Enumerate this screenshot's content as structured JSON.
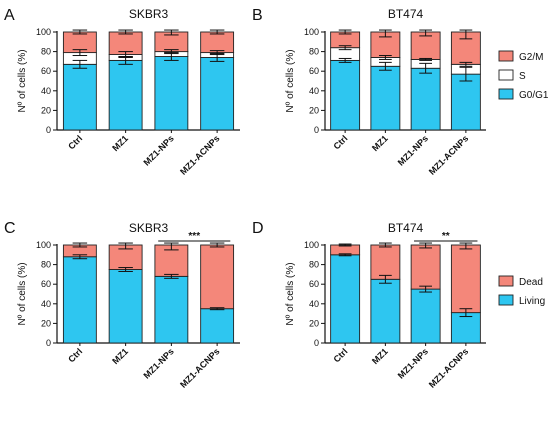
{
  "colors": {
    "g2m": "#F4877A",
    "s": "#FFFFFF",
    "g0g1": "#2EC6F0",
    "dead": "#F4877A",
    "living": "#2EC6F0",
    "living_edge": "#8ED08A"
  },
  "legends": {
    "top": [
      "G2/M",
      "S",
      "G0/G1"
    ],
    "bottom": [
      "Dead",
      "Living"
    ]
  },
  "chart_data": [
    {
      "panel": "A",
      "type": "bar",
      "stacked": true,
      "title": "SKBR3",
      "ylabel": "Nº of cells (%)",
      "ylim": [
        0,
        100
      ],
      "yticks": [
        0,
        20,
        40,
        60,
        80,
        100
      ],
      "categories": [
        "Ctrl",
        "MZ1",
        "MZ1-NPs",
        "MZ1-ACNPs"
      ],
      "series": [
        {
          "name": "G0/G1",
          "values": [
            67,
            71,
            75,
            74
          ],
          "errors": [
            4,
            4,
            4,
            4
          ]
        },
        {
          "name": "S",
          "values": [
            12,
            6,
            5,
            5
          ],
          "errors": [
            3,
            3,
            2,
            2
          ]
        },
        {
          "name": "G2/M",
          "values": [
            21,
            23,
            20,
            21
          ],
          "errors": [
            2,
            2,
            3,
            2
          ]
        }
      ]
    },
    {
      "panel": "B",
      "type": "bar",
      "stacked": true,
      "title": "BT474",
      "ylabel": "Nº of cells (%)",
      "ylim": [
        0,
        100
      ],
      "yticks": [
        0,
        20,
        40,
        60,
        80,
        100
      ],
      "categories": [
        "Ctrl",
        "MZ1",
        "MZ1-NPs",
        "MZ1-ACNPs"
      ],
      "series": [
        {
          "name": "G0/G1",
          "values": [
            71,
            65,
            63,
            57
          ],
          "errors": [
            2,
            4,
            5,
            7
          ]
        },
        {
          "name": "S",
          "values": [
            13,
            9,
            9,
            10
          ],
          "errors": [
            2,
            2,
            1,
            2
          ]
        },
        {
          "name": "G2/M",
          "values": [
            16,
            26,
            28,
            33
          ],
          "errors": [
            2,
            5,
            4,
            7
          ]
        }
      ]
    },
    {
      "panel": "C",
      "type": "bar",
      "stacked": true,
      "title": "SKBR3",
      "ylabel": "Nº of cells (%)",
      "ylim": [
        0,
        100
      ],
      "yticks": [
        0,
        20,
        40,
        60,
        80,
        100
      ],
      "categories": [
        "Ctrl",
        "MZ1",
        "MZ1-NPs",
        "MZ1-ACNPs"
      ],
      "series": [
        {
          "name": "Living",
          "values": [
            88,
            75,
            68,
            35
          ],
          "errors": [
            2,
            2,
            2,
            1
          ]
        },
        {
          "name": "Dead",
          "values": [
            12,
            25,
            32,
            65
          ],
          "errors": [
            2,
            4,
            5,
            2
          ]
        }
      ],
      "significance": {
        "between": [
          "MZ1-NPs",
          "MZ1-ACNPs"
        ],
        "label": "***"
      }
    },
    {
      "panel": "D",
      "type": "bar",
      "stacked": true,
      "title": "BT474",
      "ylabel": "Nº of cells (%)",
      "ylim": [
        0,
        100
      ],
      "yticks": [
        0,
        20,
        40,
        60,
        80,
        100
      ],
      "categories": [
        "Ctrl",
        "MZ1",
        "MZ1-NPs",
        "MZ1-ACNPs"
      ],
      "series": [
        {
          "name": "Living",
          "values": [
            90,
            65,
            55,
            31
          ],
          "errors": [
            1,
            4,
            3,
            4
          ]
        },
        {
          "name": "Dead",
          "values": [
            10,
            35,
            45,
            69
          ],
          "errors": [
            1,
            2,
            3,
            4
          ]
        }
      ],
      "significance": {
        "between": [
          "MZ1-NPs",
          "MZ1-ACNPs"
        ],
        "label": "**"
      }
    }
  ]
}
